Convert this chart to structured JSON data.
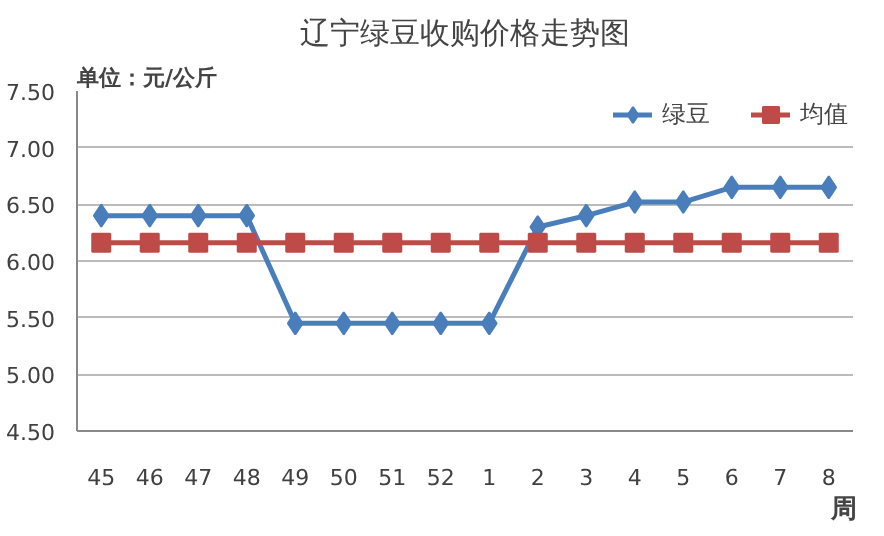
{
  "chart_data": {
    "type": "line",
    "title": "辽宁绿豆收购价格走势图",
    "ylabel": "单位：元/公斤",
    "xlabel": "周",
    "categories": [
      "45",
      "46",
      "47",
      "48",
      "49",
      "50",
      "51",
      "52",
      "1",
      "2",
      "3",
      "4",
      "5",
      "6",
      "7",
      "8"
    ],
    "series": [
      {
        "name": "绿豆",
        "color": "#4a7ebb",
        "marker": "diamond",
        "values": [
          6.4,
          6.4,
          6.4,
          6.4,
          5.45,
          5.45,
          5.45,
          5.45,
          5.45,
          6.3,
          6.4,
          6.52,
          6.52,
          6.65,
          6.65,
          6.65
        ]
      },
      {
        "name": "均值",
        "color": "#be4b48",
        "marker": "square",
        "values": [
          6.16,
          6.16,
          6.16,
          6.16,
          6.16,
          6.16,
          6.16,
          6.16,
          6.16,
          6.16,
          6.16,
          6.16,
          6.16,
          6.16,
          6.16,
          6.16
        ]
      }
    ],
    "ylim": [
      4.5,
      7.5
    ],
    "yticks": [
      {
        "value": 4.5,
        "label": "4.50"
      },
      {
        "value": 5,
        "label": "5.00"
      },
      {
        "value": 5.5,
        "label": "5.50"
      },
      {
        "value": 6,
        "label": "6.00"
      },
      {
        "value": 6.5,
        "label": "6.50"
      },
      {
        "value": 7,
        "label": "7.00"
      },
      {
        "value": 7.5,
        "label": "7.50"
      }
    ],
    "grid": "y",
    "legend": "top right",
    "line_style": "solid"
  }
}
